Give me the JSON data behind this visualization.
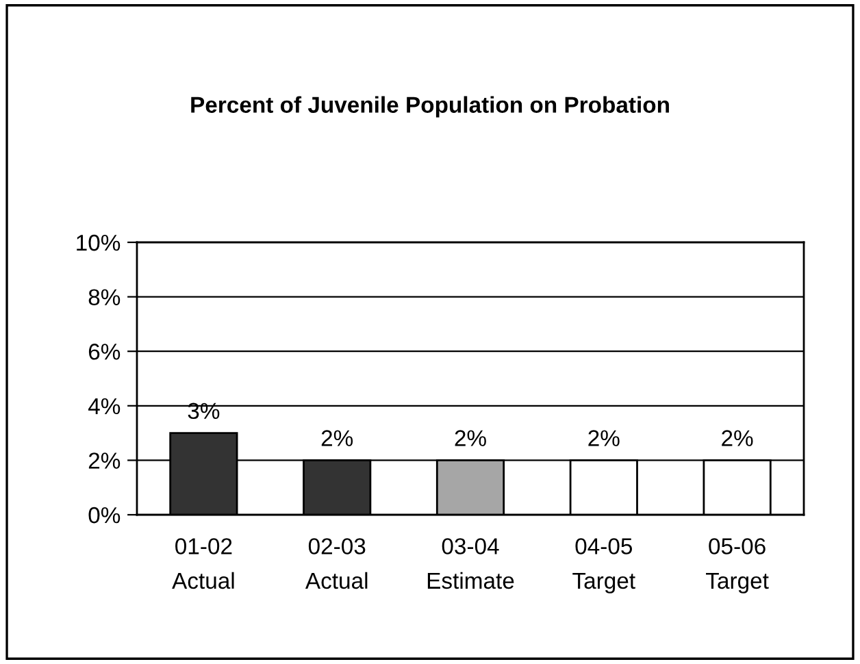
{
  "chart_data": {
    "type": "bar",
    "title": "Percent of Juvenile Population on Probation",
    "categories": [
      "01-02\nActual",
      "02-03\nActual",
      "03-04\nEstimate",
      "04-05\nTarget",
      "05-06\nTarget"
    ],
    "values": [
      3,
      2,
      2,
      2,
      2
    ],
    "colors": [
      "#333333",
      "#333333",
      "#a6a6a6",
      "#ffffff",
      "#ffffff"
    ],
    "value_labels": [
      "3%",
      "2%",
      "2%",
      "2%",
      "2%"
    ],
    "ylim": [
      0,
      10
    ],
    "yticks": [
      {
        "value": 0,
        "label": "0%"
      },
      {
        "value": 2,
        "label": "2%"
      },
      {
        "value": 4,
        "label": "4%"
      },
      {
        "value": 6,
        "label": "6%"
      },
      {
        "value": 8,
        "label": "8%"
      },
      {
        "value": 10,
        "label": "10%"
      }
    ],
    "grid": "y",
    "legend": false
  }
}
